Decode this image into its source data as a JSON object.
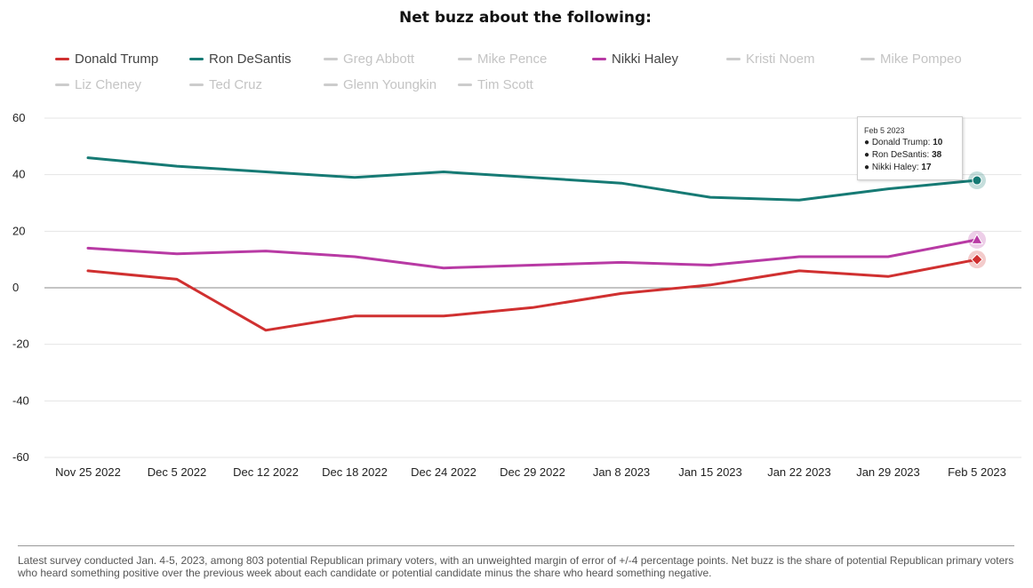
{
  "chart_data": {
    "type": "line",
    "title": "Net buzz about the following:",
    "x": [
      "Nov 25 2022",
      "Dec 5 2022",
      "Dec 12 2022",
      "Dec 18 2022",
      "Dec 24 2022",
      "Dec 29 2022",
      "Jan 8 2023",
      "Jan 15 2023",
      "Jan 22 2023",
      "Jan 29 2023",
      "Feb 5 2023"
    ],
    "ylim": [
      -60,
      60
    ],
    "yticks": [
      60,
      40,
      20,
      0,
      -20,
      -40,
      -60
    ],
    "grid": true,
    "legend_position": "top",
    "series": [
      {
        "name": "Donald Trump",
        "color": "#d03030",
        "visible": true,
        "marker": "diamond",
        "values": [
          6,
          3,
          -15,
          -10,
          -10,
          -7,
          -2,
          1,
          6,
          4,
          10
        ]
      },
      {
        "name": "Ron DeSantis",
        "color": "#167a74",
        "visible": true,
        "marker": "circle",
        "values": [
          46,
          43,
          41,
          39,
          41,
          39,
          37,
          32,
          31,
          35,
          38
        ]
      },
      {
        "name": "Nikki Haley",
        "color": "#b83aa4",
        "visible": true,
        "marker": "triangle",
        "values": [
          14,
          12,
          13,
          11,
          7,
          8,
          9,
          8,
          11,
          11,
          17
        ]
      }
    ]
  },
  "legend": [
    {
      "label": "Donald Trump",
      "color": "#d03030",
      "active": true
    },
    {
      "label": "Ron DeSantis",
      "color": "#167a74",
      "active": true
    },
    {
      "label": "Greg Abbott",
      "color": "#cccccc",
      "active": false
    },
    {
      "label": "Mike Pence",
      "color": "#cccccc",
      "active": false
    },
    {
      "label": "Nikki Haley",
      "color": "#b83aa4",
      "active": true
    },
    {
      "label": "Kristi Noem",
      "color": "#cccccc",
      "active": false
    },
    {
      "label": "Mike Pompeo",
      "color": "#cccccc",
      "active": false
    },
    {
      "label": "Liz Cheney",
      "color": "#cccccc",
      "active": false
    },
    {
      "label": "Ted Cruz",
      "color": "#cccccc",
      "active": false
    },
    {
      "label": "Glenn Youngkin",
      "color": "#cccccc",
      "active": false
    },
    {
      "label": "Tim Scott",
      "color": "#cccccc",
      "active": false
    }
  ],
  "tooltip": {
    "date": "Feb 5 2023",
    "rows": [
      {
        "label": "Donald Trump:",
        "value": "10"
      },
      {
        "label": "Ron DeSantis:",
        "value": "38"
      },
      {
        "label": "Nikki Haley:",
        "value": "17"
      }
    ]
  },
  "note": "Latest survey conducted Jan. 4-5, 2023, among 803 potential Republican primary voters, with an unweighted margin of error of +/-4 percentage points. Net buzz is the share of potential Republican primary voters who heard something positive over the previous week about each candidate or potential candidate minus the share who heard something negative."
}
